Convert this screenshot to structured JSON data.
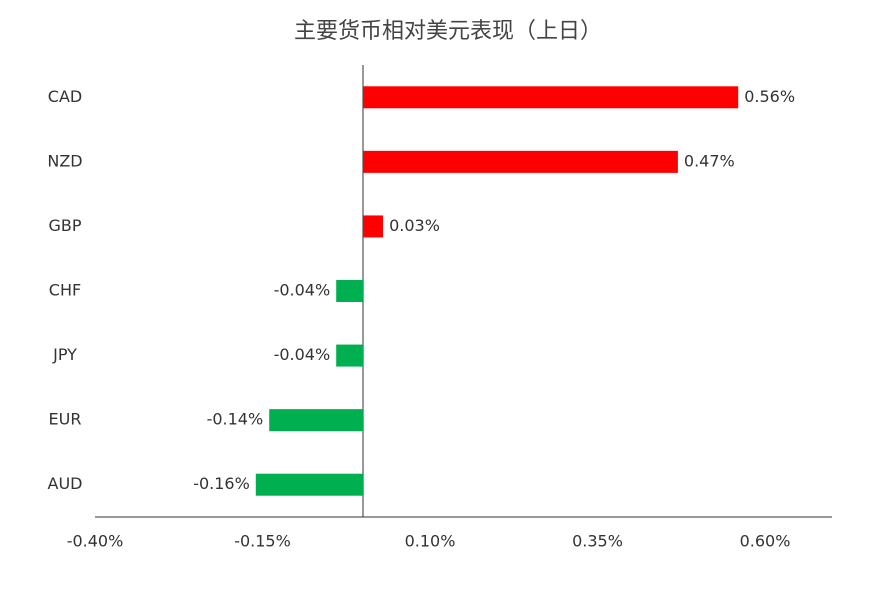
{
  "chart_data": {
    "type": "hbar",
    "title": "主要货币相对美元表现（上日）",
    "categories": [
      "CAD",
      "NZD",
      "GBP",
      "CHF",
      "JPY",
      "EUR",
      "AUD"
    ],
    "values": [
      0.56,
      0.47,
      0.03,
      -0.04,
      -0.04,
      -0.14,
      -0.16
    ],
    "value_labels": [
      "0.56%",
      "0.47%",
      "0.03%",
      "-0.04%",
      "-0.04%",
      "-0.14%",
      "-0.16%"
    ],
    "colors": [
      "#ff0000",
      "#ff0000",
      "#ff0000",
      "#00b050",
      "#00b050",
      "#00b050",
      "#00b050"
    ],
    "xlim": [
      -0.4,
      0.7
    ],
    "xticks": [
      {
        "value": -0.4,
        "label": "-0.40%"
      },
      {
        "value": -0.15,
        "label": "-0.15%"
      },
      {
        "value": 0.1,
        "label": "0.10%"
      },
      {
        "value": 0.35,
        "label": "0.35%"
      },
      {
        "value": 0.6,
        "label": "0.60%"
      }
    ],
    "grid": false
  }
}
